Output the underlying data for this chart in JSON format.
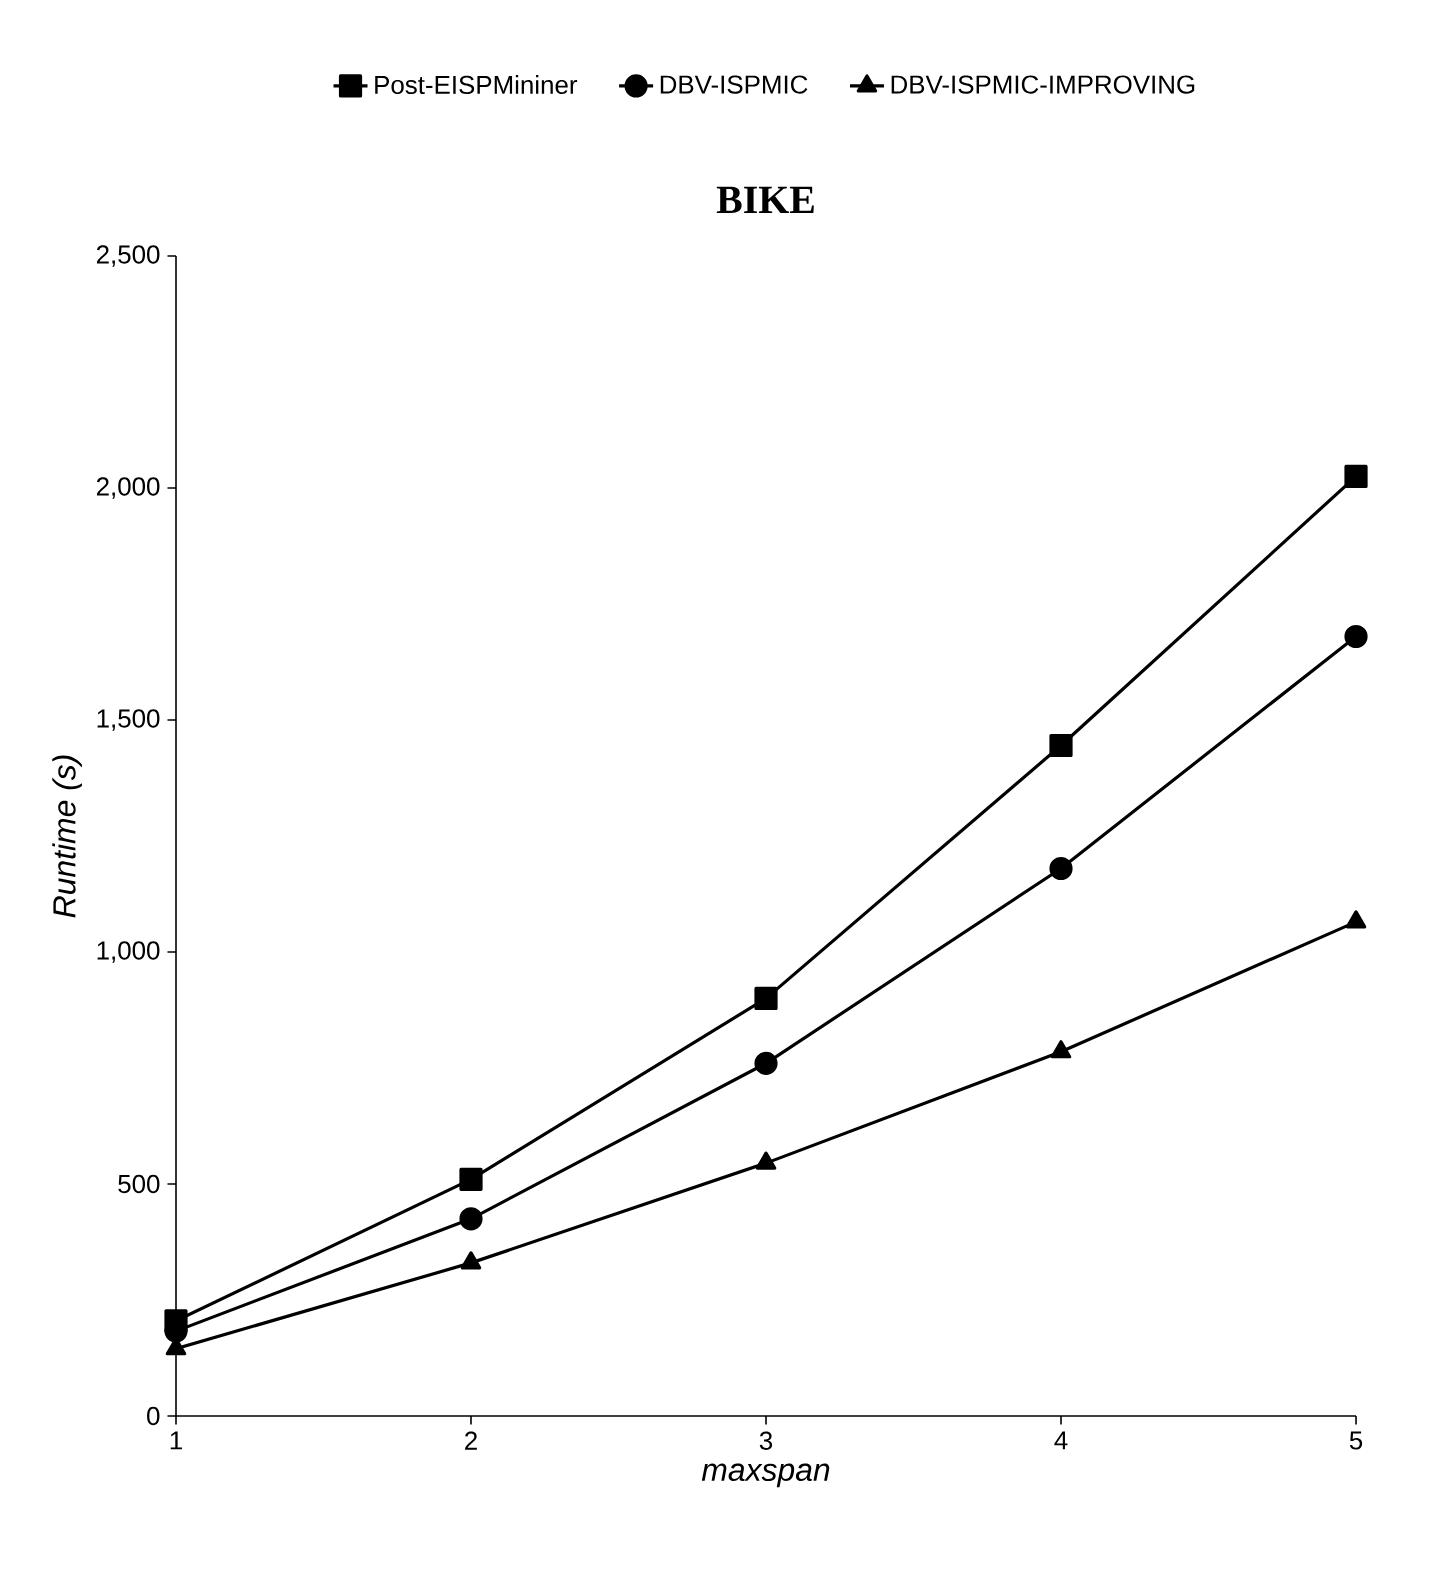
{
  "chart_data": {
    "type": "line",
    "title": "BIKE",
    "xlabel": "maxspan",
    "ylabel": "Runtime (s)",
    "x": [
      1,
      2,
      3,
      4,
      5
    ],
    "series": [
      {
        "name": "Post-EISPMininer",
        "color": "#000000",
        "marker": "square",
        "values": [
          205,
          510,
          900,
          1445,
          2025
        ]
      },
      {
        "name": "DBV-ISPMIC",
        "color": "#000000",
        "marker": "circle",
        "values": [
          183,
          425,
          760,
          1180,
          1680
        ]
      },
      {
        "name": "DBV-ISPMIC-IMPROVING",
        "color": "#000000",
        "marker": "triangle",
        "values": [
          145,
          330,
          545,
          785,
          1065
        ]
      }
    ],
    "xlim": [
      1,
      5
    ],
    "ylim": [
      0,
      2500
    ],
    "xticks": [
      1,
      2,
      3,
      4,
      5
    ],
    "yticks": [
      0,
      500,
      {
        "value": 1000,
        "label": "1,000"
      },
      {
        "value": 1500,
        "label": "1,500"
      },
      {
        "value": 2000,
        "label": "2,000"
      },
      {
        "value": 2500,
        "label": "2,500"
      }
    ],
    "grid": false,
    "legend": "top",
    "line_style": "solid"
  }
}
